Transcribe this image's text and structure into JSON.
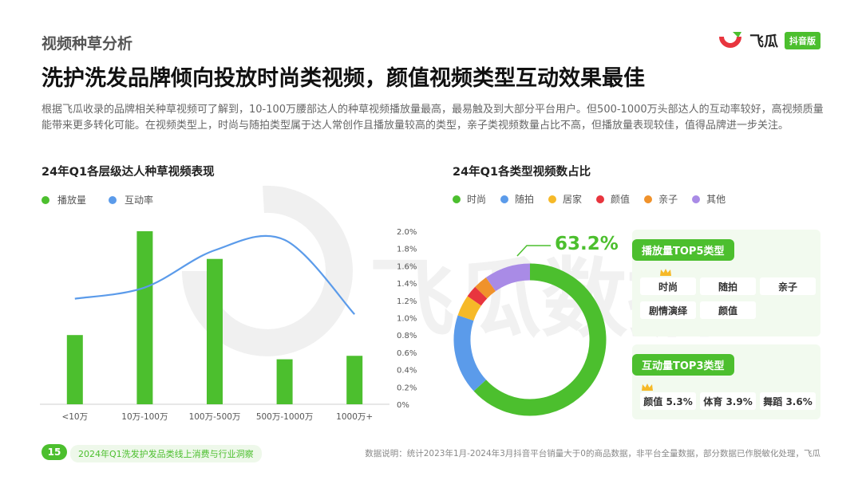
{
  "header": {
    "section_label": "视频种草分析",
    "headline": "洗护洗发品牌倾向投放时尚类视频，颜值视频类型互动效果最佳",
    "description": "根据飞瓜收录的品牌相关种草视频可了解到，10-100万腰部达人的种草视频播放量最高，最易触及到大部分平台用户。但500-1000万头部达人的互动率较好，高视频质量能带来更多转化可能。在视频类型上，时尚与随拍类型属于达人常创作且播放量较高的类型，亲子类视频数量占比不高，但播放量表现较佳，值得品牌进一步关注。"
  },
  "logo": {
    "name": "飞瓜",
    "badge": "抖音版",
    "icon": "feigua-logo-icon",
    "colors": {
      "red": "#e8353e",
      "green": "#4cbf2e"
    }
  },
  "watermark": "飞瓜数据",
  "chart_data": [
    {
      "type": "bar",
      "title": "24年Q1各层级达人种草视频表现",
      "categories": [
        "<10万",
        "10万-100万",
        "100万-500万",
        "500万-1000万",
        "1000万+"
      ],
      "series": [
        {
          "name": "播放量",
          "type": "bar",
          "values": [
            0.4,
            1.0,
            0.84,
            0.26,
            0.28
          ],
          "color": "#4cbf2e"
        },
        {
          "name": "互动率",
          "type": "line",
          "axis": "right",
          "values": [
            1.22,
            1.35,
            1.78,
            1.9,
            1.04
          ],
          "color": "#5b9bea"
        }
      ],
      "y2ticks": [
        "0%",
        "0.2%",
        "0.4%",
        "0.6%",
        "0.8%",
        "1.0%",
        "1.2%",
        "1.4%",
        "1.6%",
        "1.8%",
        "2.0%"
      ],
      "y2lim": [
        0,
        2.0
      ],
      "legend_position": "top-left"
    },
    {
      "type": "pie",
      "style": "donut",
      "title": "24年Q1各类型视频数占比",
      "labels": [
        "时尚",
        "随拍",
        "居家",
        "颜值",
        "亲子",
        "其他"
      ],
      "values": [
        63.2,
        17.0,
        4.5,
        2.5,
        3.0,
        9.8
      ],
      "colors": [
        "#4cbf2e",
        "#5b9bea",
        "#f6b928",
        "#e8353e",
        "#f0922b",
        "#a98be6"
      ],
      "callout": "63.2%",
      "legend_position": "top"
    }
  ],
  "top5": {
    "title": "播放量TOP5类型",
    "items": [
      "时尚",
      "随拍",
      "亲子",
      "剧情演绎",
      "颜值"
    ]
  },
  "top3": {
    "title": "互动量TOP3类型",
    "items": [
      "颜值 5.3%",
      "体育 3.9%",
      "舞蹈 3.6%"
    ]
  },
  "footer": {
    "page": "15",
    "report": "2024年Q1洗发护发品类线上消费与行业洞察",
    "note": "数据说明：统计2023年1月-2024年3月抖音平台销量大于0的商品数据，非平台全量数据，部分数据已作脱敏化处理，飞瓜"
  }
}
